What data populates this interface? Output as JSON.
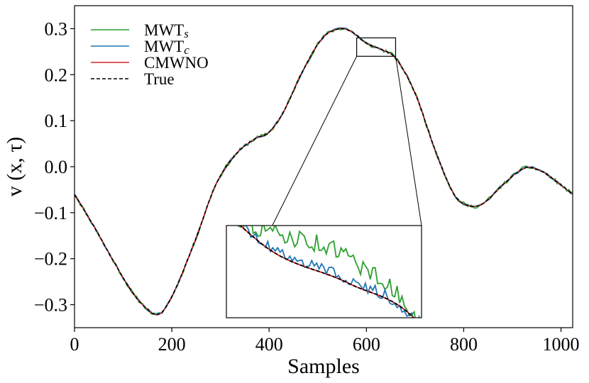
{
  "chart_data": {
    "type": "line",
    "title": "",
    "xlabel": "Samples",
    "ylabel": "v (x, τ)",
    "xlim": [
      0,
      1024
    ],
    "ylim": [
      -0.35,
      0.35
    ],
    "xticks": [
      0,
      200,
      400,
      600,
      800,
      1000
    ],
    "xtick_labels": [
      "0",
      "200",
      "400",
      "600",
      "800",
      "1000"
    ],
    "yticks": [
      -0.3,
      -0.2,
      -0.1,
      0.0,
      0.1,
      0.2,
      0.3
    ],
    "ytick_labels": [
      "−0.3",
      "−0.2",
      "−0.1",
      "0.0",
      "0.1",
      "0.2",
      "0.3"
    ],
    "grid": false,
    "legend_position": "top-left",
    "series": [
      {
        "name": "MWT",
        "subscript": "s",
        "color": "#2ca02c",
        "dash": "solid",
        "noise": 0.004,
        "seed": 11,
        "inset_offset": 0.012
      },
      {
        "name": "MWT",
        "subscript": "c",
        "color": "#1f77b4",
        "dash": "solid",
        "noise": 0.0025,
        "seed": 29,
        "inset_offset": 0.002
      },
      {
        "name": "CMWNO",
        "subscript": "",
        "color": "#d62728",
        "dash": "solid",
        "noise": 0.0,
        "seed": 0,
        "inset_offset": 0.0
      },
      {
        "name": "True",
        "subscript": "",
        "color": "#000000",
        "dash": "dashed",
        "noise": 0.0,
        "seed": 0,
        "inset_offset": 0.0
      }
    ],
    "true_curve_keypoints": {
      "x": [
        0,
        40,
        80,
        120,
        150,
        168,
        185,
        210,
        250,
        290,
        330,
        370,
        400,
        430,
        470,
        510,
        545,
        570,
        600,
        630,
        660,
        700,
        740,
        780,
        810,
        840,
        880,
        925,
        960,
        1000,
        1024
      ],
      "y": [
        -0.06,
        -0.13,
        -0.205,
        -0.275,
        -0.31,
        -0.322,
        -0.31,
        -0.26,
        -0.155,
        -0.04,
        0.025,
        0.06,
        0.075,
        0.12,
        0.21,
        0.28,
        0.3,
        0.293,
        0.268,
        0.255,
        0.236,
        0.16,
        0.04,
        -0.06,
        -0.085,
        -0.08,
        -0.04,
        -0.003,
        -0.01,
        -0.04,
        -0.06
      ]
    },
    "zoom_region": {
      "x": [
        580,
        660
      ],
      "y": [
        0.24,
        0.28
      ]
    }
  }
}
